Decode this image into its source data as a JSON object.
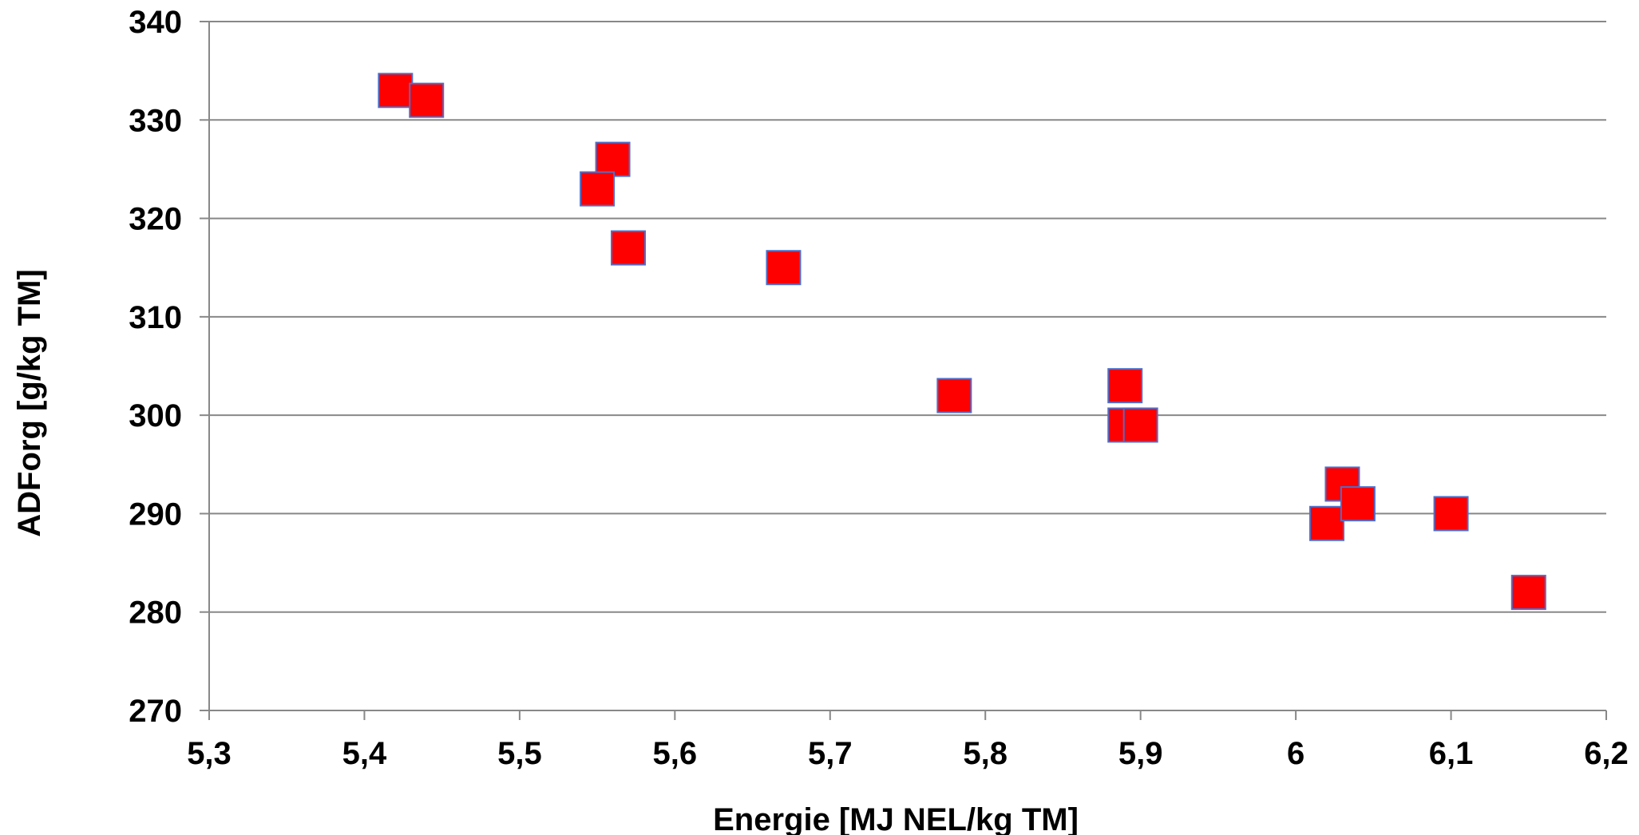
{
  "chart_data": {
    "type": "scatter",
    "title": "",
    "xlabel": "Energie [MJ NEL/kg TM]",
    "ylabel": "ADForg [g/kg TM]",
    "xlim": [
      5.3,
      6.2
    ],
    "ylim": [
      270,
      340
    ],
    "x_ticks": [
      5.3,
      5.4,
      5.5,
      5.6,
      5.7,
      5.8,
      5.9,
      6.0,
      6.1,
      6.2
    ],
    "x_tick_labels": [
      "5,3",
      "5,4",
      "5,5",
      "5,6",
      "5,7",
      "5,8",
      "5,9",
      "6",
      "6,1",
      "6,2"
    ],
    "y_ticks": [
      270,
      280,
      290,
      300,
      310,
      320,
      330,
      340
    ],
    "y_tick_labels": [
      "270",
      "280",
      "290",
      "300",
      "310",
      "320",
      "330",
      "340"
    ],
    "grid": "horizontal",
    "legend": "none",
    "marker": "square",
    "marker_color": "#FF0000",
    "marker_edge_color": "#4F6EC9",
    "series": [
      {
        "points": [
          {
            "x": 5.42,
            "y": 333
          },
          {
            "x": 5.44,
            "y": 332
          },
          {
            "x": 5.56,
            "y": 326
          },
          {
            "x": 5.55,
            "y": 323
          },
          {
            "x": 5.57,
            "y": 317
          },
          {
            "x": 5.67,
            "y": 315
          },
          {
            "x": 5.78,
            "y": 302
          },
          {
            "x": 5.89,
            "y": 303
          },
          {
            "x": 5.89,
            "y": 299
          },
          {
            "x": 5.9,
            "y": 299
          },
          {
            "x": 6.03,
            "y": 293
          },
          {
            "x": 6.02,
            "y": 289
          },
          {
            "x": 6.04,
            "y": 291
          },
          {
            "x": 6.1,
            "y": 290
          },
          {
            "x": 6.15,
            "y": 282
          }
        ]
      }
    ]
  }
}
